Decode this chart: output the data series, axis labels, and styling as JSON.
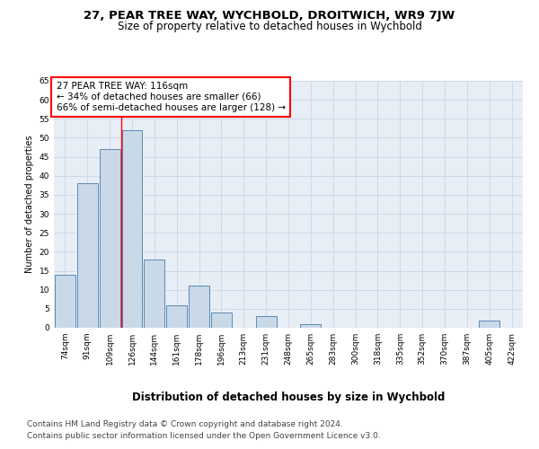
{
  "title": "27, PEAR TREE WAY, WYCHBOLD, DROITWICH, WR9 7JW",
  "subtitle": "Size of property relative to detached houses in Wychbold",
  "xlabel": "Distribution of detached houses by size in Wychbold",
  "ylabel": "Number of detached properties",
  "categories": [
    "74sqm",
    "91sqm",
    "109sqm",
    "126sqm",
    "144sqm",
    "161sqm",
    "178sqm",
    "196sqm",
    "213sqm",
    "231sqm",
    "248sqm",
    "265sqm",
    "283sqm",
    "300sqm",
    "318sqm",
    "335sqm",
    "352sqm",
    "370sqm",
    "387sqm",
    "405sqm",
    "422sqm"
  ],
  "values": [
    14,
    38,
    47,
    52,
    18,
    6,
    11,
    4,
    0,
    3,
    0,
    1,
    0,
    0,
    0,
    0,
    0,
    0,
    0,
    2,
    0
  ],
  "bar_color": "#c9d9e8",
  "bar_edgecolor": "#5a8ab5",
  "bar_linewidth": 0.7,
  "grid_color": "#d0d8e8",
  "bg_color": "#e8eef5",
  "annotation_line1": "27 PEAR TREE WAY: 116sqm",
  "annotation_line2": "← 34% of detached houses are smaller (66)",
  "annotation_line3": "66% of semi-detached houses are larger (128) →",
  "annotation_box_color": "white",
  "annotation_box_edgecolor": "red",
  "red_line_x": 2.5,
  "ylim": [
    0,
    65
  ],
  "yticks": [
    0,
    5,
    10,
    15,
    20,
    25,
    30,
    35,
    40,
    45,
    50,
    55,
    60,
    65
  ],
  "footer_line1": "Contains HM Land Registry data © Crown copyright and database right 2024.",
  "footer_line2": "Contains public sector information licensed under the Open Government Licence v3.0.",
  "title_fontsize": 9.5,
  "subtitle_fontsize": 8.5,
  "xlabel_fontsize": 8.5,
  "ylabel_fontsize": 7,
  "tick_fontsize": 6.5,
  "annot_fontsize": 7.5,
  "footer_fontsize": 6.5
}
